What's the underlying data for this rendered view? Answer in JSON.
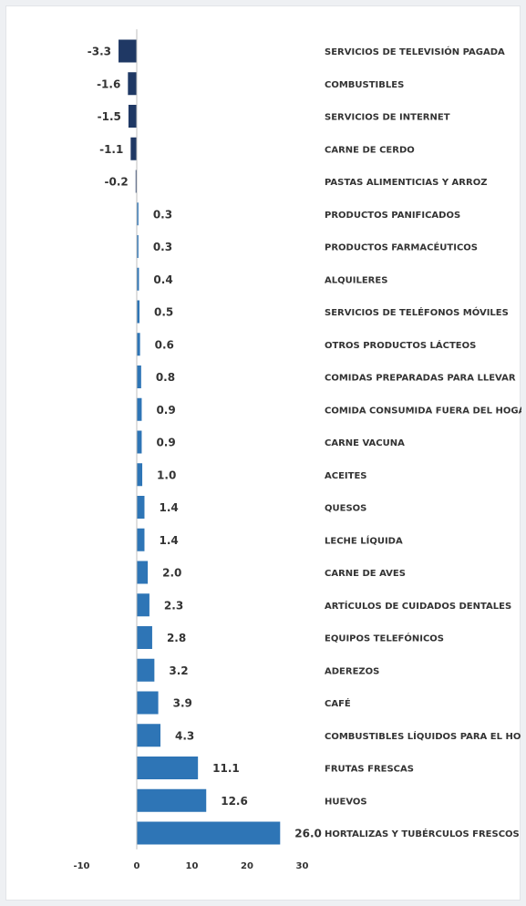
{
  "chart_data": {
    "type": "bar",
    "orientation": "horizontal",
    "title": "",
    "xlabel": "",
    "ylabel": "",
    "xlim": [
      -10,
      30
    ],
    "xticks": [
      -10,
      0,
      10,
      20,
      30
    ],
    "grid": false,
    "legend": "none",
    "colors": {
      "negative": "#1f3864",
      "positive": "#2e75b6",
      "axis": "#bfbfbf"
    },
    "categories": [
      "SERVICIOS DE TELEVISIÓN PAGADA",
      "COMBUSTIBLES",
      "SERVICIOS DE INTERNET",
      "CARNE DE CERDO",
      "PASTAS ALIMENTICIAS Y ARROZ",
      "PRODUCTOS PANIFICADOS",
      "PRODUCTOS FARMACÉUTICOS",
      "ALQUILERES",
      "SERVICIOS DE TELÉFONOS MÓVILES",
      "OTROS PRODUCTOS LÁCTEOS",
      "COMIDAS PREPARADAS PARA LLEVAR",
      "COMIDA CONSUMIDA FUERA DEL HOGAR",
      "CARNE VACUNA",
      "ACEITES",
      "QUESOS",
      "LECHE LÍQUIDA",
      "CARNE DE AVES",
      "ARTÍCULOS DE CUIDADOS DENTALES",
      "EQUIPOS TELEFÓNICOS",
      "ADEREZOS",
      "CAFÉ",
      "COMBUSTIBLES LÍQUIDOS PARA EL HOGAR",
      "FRUTAS FRESCAS",
      "HUEVOS",
      "HORTALIZAS Y TUBÉRCULOS FRESCOS"
    ],
    "values": [
      -3.3,
      -1.6,
      -1.5,
      -1.1,
      -0.2,
      0.3,
      0.3,
      0.4,
      0.5,
      0.6,
      0.8,
      0.9,
      0.9,
      1.0,
      1.4,
      1.4,
      2.0,
      2.3,
      2.8,
      3.2,
      3.9,
      4.3,
      11.1,
      12.6,
      26.0
    ],
    "value_labels": [
      "-3.3",
      "-1.6",
      "-1.5",
      "-1.1",
      "-0.2",
      "0.3",
      "0.3",
      "0.4",
      "0.5",
      "0.6",
      "0.8",
      "0.9",
      "0.9",
      "1.0",
      "1.4",
      "1.4",
      "2.0",
      "2.3",
      "2.8",
      "3.2",
      "3.9",
      "4.3",
      "11.1",
      "12.6",
      "26.0"
    ]
  }
}
